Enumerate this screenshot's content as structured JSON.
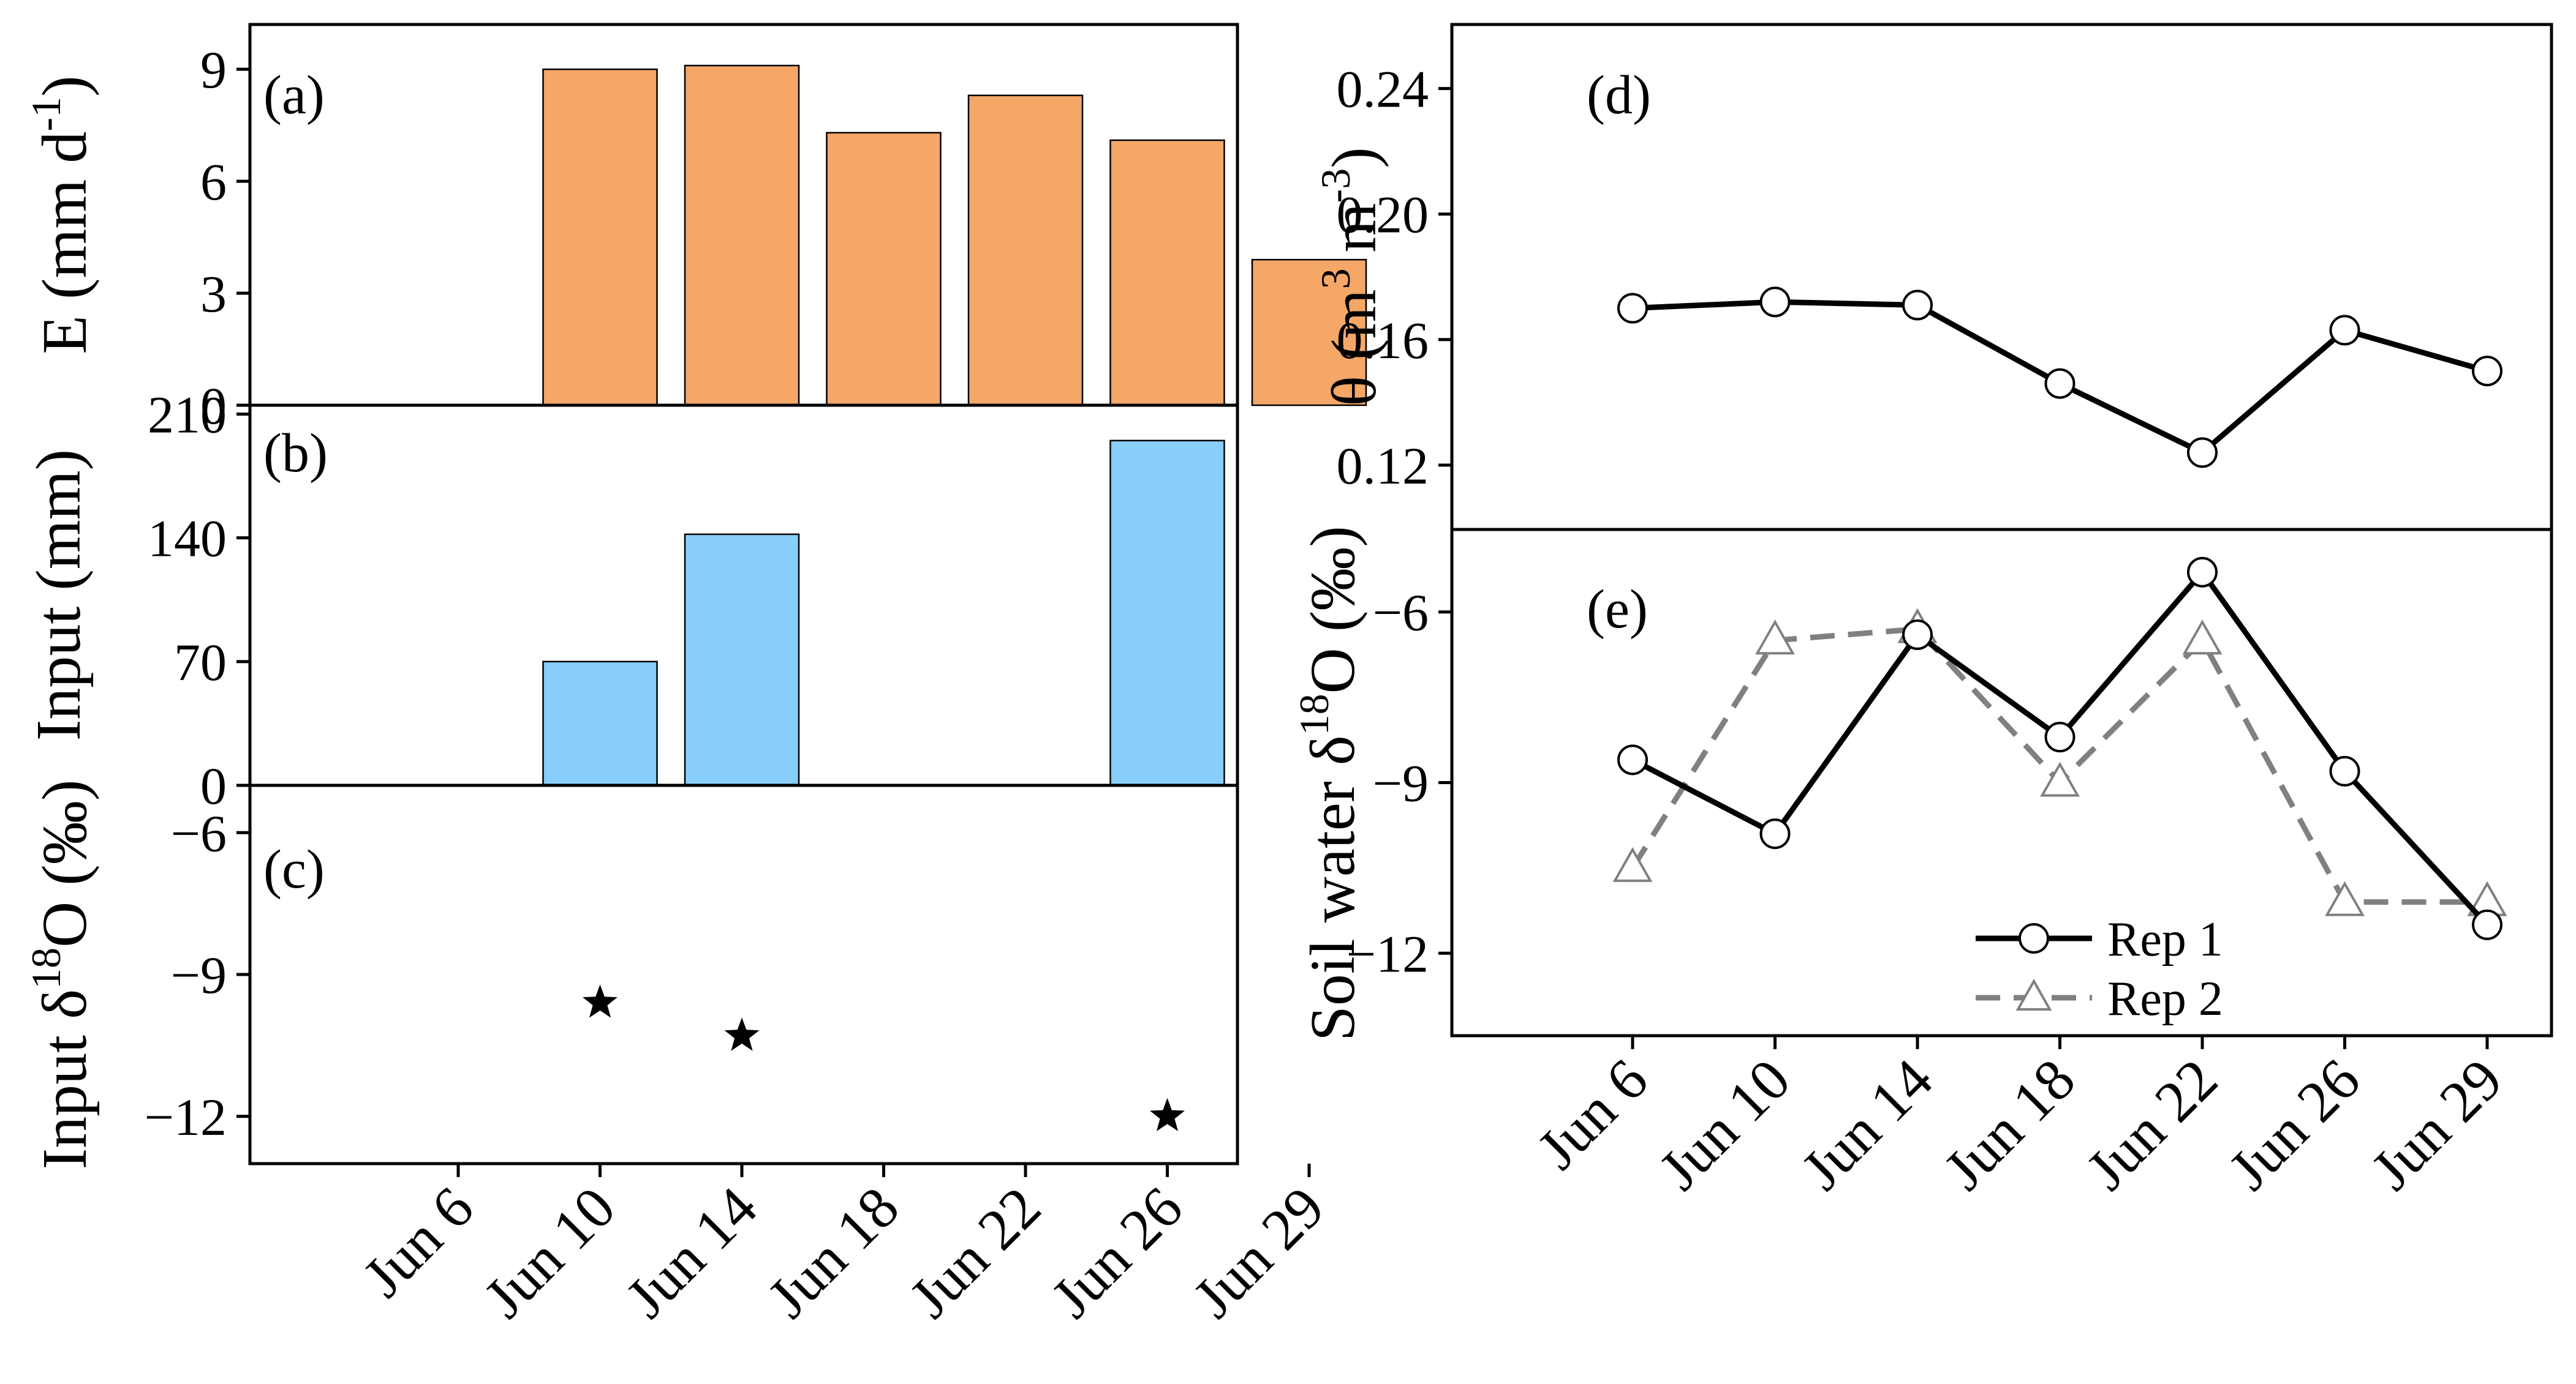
{
  "colors": {
    "evap_bar": "#F4A766",
    "input_bar": "#87CEFA",
    "rep2_line": "#808080"
  },
  "dates": [
    "Jun 6",
    "Jun 10",
    "Jun 14",
    "Jun 18",
    "Jun 22",
    "Jun 26",
    "Jun 29"
  ],
  "chart_data": [
    {
      "id": "a",
      "type": "bar",
      "panel_label": "(a)",
      "ylabel_main": "E (mm d",
      "ylabel_sup": "-1",
      "ylabel_end": ")",
      "ylim": [
        0,
        10.2
      ],
      "yticks": [
        0,
        3,
        6,
        9
      ],
      "categories": [
        "Jun 6",
        "Jun 10",
        "Jun 14",
        "Jun 18",
        "Jun 22",
        "Jun 26",
        "Jun 29"
      ],
      "values": [
        null,
        9.0,
        9.1,
        7.3,
        8.3,
        7.1,
        3.9
      ]
    },
    {
      "id": "b",
      "type": "bar",
      "panel_label": "(b)",
      "ylabel": "Input (mm)",
      "ylim": [
        0,
        215
      ],
      "yticks": [
        0,
        70,
        140,
        210
      ],
      "categories": [
        "Jun 6",
        "Jun 10",
        "Jun 14",
        "Jun 18",
        "Jun 22",
        "Jun 26",
        "Jun 29"
      ],
      "values": [
        null,
        70,
        142,
        null,
        null,
        195,
        null
      ]
    },
    {
      "id": "c",
      "type": "scatter",
      "panel_label": "(c)",
      "ylabel_main": "Input δ",
      "ylabel_sup": "18",
      "ylabel_end": "O (‰)",
      "ylim": [
        -13.0,
        -5.0
      ],
      "yticks": [
        -6,
        -9,
        -12
      ],
      "x": [
        "Jun 10",
        "Jun 14",
        "Jun 26"
      ],
      "y": [
        -9.6,
        -10.3,
        -12.0
      ],
      "marker": "star"
    },
    {
      "id": "d",
      "type": "line",
      "panel_label": "(d)",
      "ylabel_main": "θ (m",
      "ylabel_sup1": "3",
      "ylabel_mid": " m",
      "ylabel_sup2": "-3",
      "ylabel_end": ")",
      "ylim": [
        0.0995,
        0.2604
      ],
      "yticks": [
        0.12,
        0.16,
        0.2,
        0.24
      ],
      "ytick_labels": [
        "0.12",
        "0.16",
        "0.20",
        "0.24"
      ],
      "x": [
        "Jun 6",
        "Jun 10",
        "Jun 14",
        "Jun 18",
        "Jun 22",
        "Jun 26",
        "Jun 29"
      ],
      "series": [
        {
          "values": [
            0.17,
            0.172,
            0.171,
            0.146,
            0.124,
            0.163,
            0.15
          ]
        }
      ]
    },
    {
      "id": "e",
      "type": "line",
      "panel_label": "(e)",
      "ylabel_main": "Soil water δ",
      "ylabel_sup": "18",
      "ylabel_end": "O (‰)",
      "ylim": [
        -13.45,
        -4.55
      ],
      "yticks": [
        -6,
        -9,
        -12
      ],
      "x": [
        "Jun 6",
        "Jun 10",
        "Jun 14",
        "Jun 18",
        "Jun 22",
        "Jun 26",
        "Jun 29"
      ],
      "series": [
        {
          "name": "Rep 1",
          "marker": "circle",
          "dash": "solid",
          "values": [
            -8.6,
            -9.9,
            -6.4,
            -8.2,
            -5.3,
            -8.8,
            -11.5
          ]
        },
        {
          "name": "Rep 2",
          "marker": "triangle",
          "dash": "dashed",
          "values": [
            -10.5,
            -6.5,
            -6.3,
            -9.0,
            -6.5,
            -11.1,
            -11.1
          ]
        }
      ],
      "legend": "lower-right"
    }
  ]
}
